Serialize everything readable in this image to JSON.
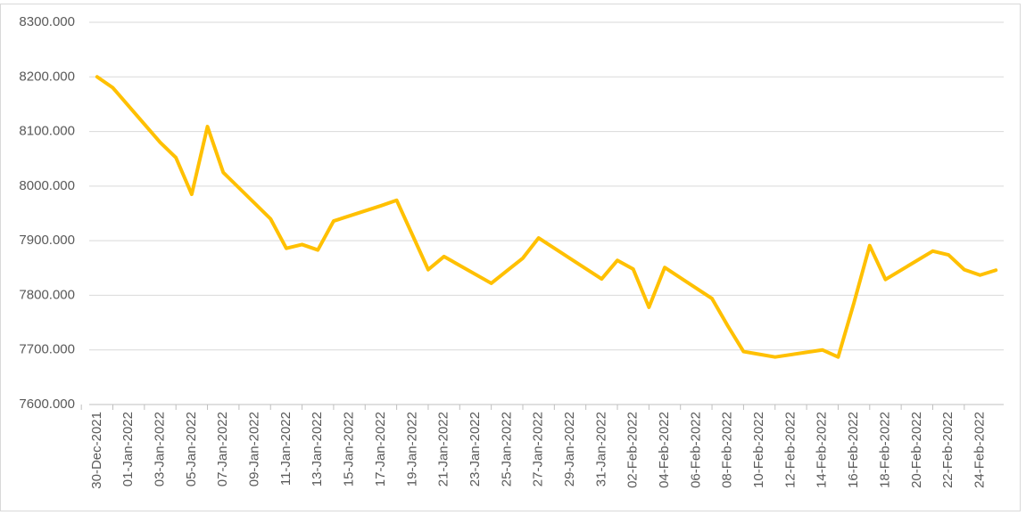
{
  "chart_data": {
    "type": "line",
    "x": [
      "30-Dec-2021",
      "31-Dec-2021",
      "03-Jan-2022",
      "04-Jan-2022",
      "05-Jan-2022",
      "06-Jan-2022",
      "07-Jan-2022",
      "10-Jan-2022",
      "11-Jan-2022",
      "12-Jan-2022",
      "13-Jan-2022",
      "14-Jan-2022",
      "17-Jan-2022",
      "18-Jan-2022",
      "20-Jan-2022",
      "21-Jan-2022",
      "24-Jan-2022",
      "25-Jan-2022",
      "26-Jan-2022",
      "27-Jan-2022",
      "31-Jan-2022",
      "01-Feb-2022",
      "02-Feb-2022",
      "03-Feb-2022",
      "04-Feb-2022",
      "07-Feb-2022",
      "08-Feb-2022",
      "09-Feb-2022",
      "10-Feb-2022",
      "11-Feb-2022",
      "14-Feb-2022",
      "15-Feb-2022",
      "16-Feb-2022",
      "17-Feb-2022",
      "18-Feb-2022",
      "21-Feb-2022",
      "22-Feb-2022",
      "23-Feb-2022",
      "24-Feb-2022",
      "25-Feb-2022"
    ],
    "series": [
      {
        "color": "#FFC000",
        "values": [
          8200,
          8180,
          8080,
          8052,
          7985,
          8109,
          8025,
          7940,
          7886,
          7893,
          7883,
          7936,
          7964,
          7974,
          7847,
          7871,
          7822,
          7845,
          7868,
          7905,
          7830,
          7864,
          7848,
          7778,
          7851,
          7794,
          7744,
          7697,
          7692,
          7687,
          7700,
          7687,
          7786,
          7891,
          7829,
          7881,
          7874,
          7847,
          7837,
          7846
        ]
      }
    ],
    "xlim": [
      "30-Dec-2021",
      "25-Feb-2022"
    ],
    "xticks": [
      "30-Dec-2021",
      "01-Jan-2022",
      "03-Jan-2022",
      "05-Jan-2022",
      "07-Jan-2022",
      "09-Jan-2022",
      "11-Jan-2022",
      "13-Jan-2022",
      "15-Jan-2022",
      "17-Jan-2022",
      "19-Jan-2022",
      "21-Jan-2022",
      "23-Jan-2022",
      "25-Jan-2022",
      "27-Jan-2022",
      "29-Jan-2022",
      "31-Jan-2022",
      "02-Feb-2022",
      "04-Feb-2022",
      "06-Feb-2022",
      "08-Feb-2022",
      "10-Feb-2022",
      "12-Feb-2022",
      "14-Feb-2022",
      "16-Feb-2022",
      "18-Feb-2022",
      "20-Feb-2022",
      "22-Feb-2022",
      "24-Feb-2022"
    ],
    "ylim": [
      7600,
      8300
    ],
    "yticks": [
      {
        "value": 7600,
        "label": "7600.000"
      },
      {
        "value": 7700,
        "label": "7700.000"
      },
      {
        "value": 7800,
        "label": "7800.000"
      },
      {
        "value": 7900,
        "label": "7900.000"
      },
      {
        "value": 8000,
        "label": "8000.000"
      },
      {
        "value": 8100,
        "label": "8100.000"
      },
      {
        "value": 8200,
        "label": "8200.000"
      },
      {
        "value": 8300,
        "label": "8300.000"
      }
    ],
    "grid": true
  }
}
